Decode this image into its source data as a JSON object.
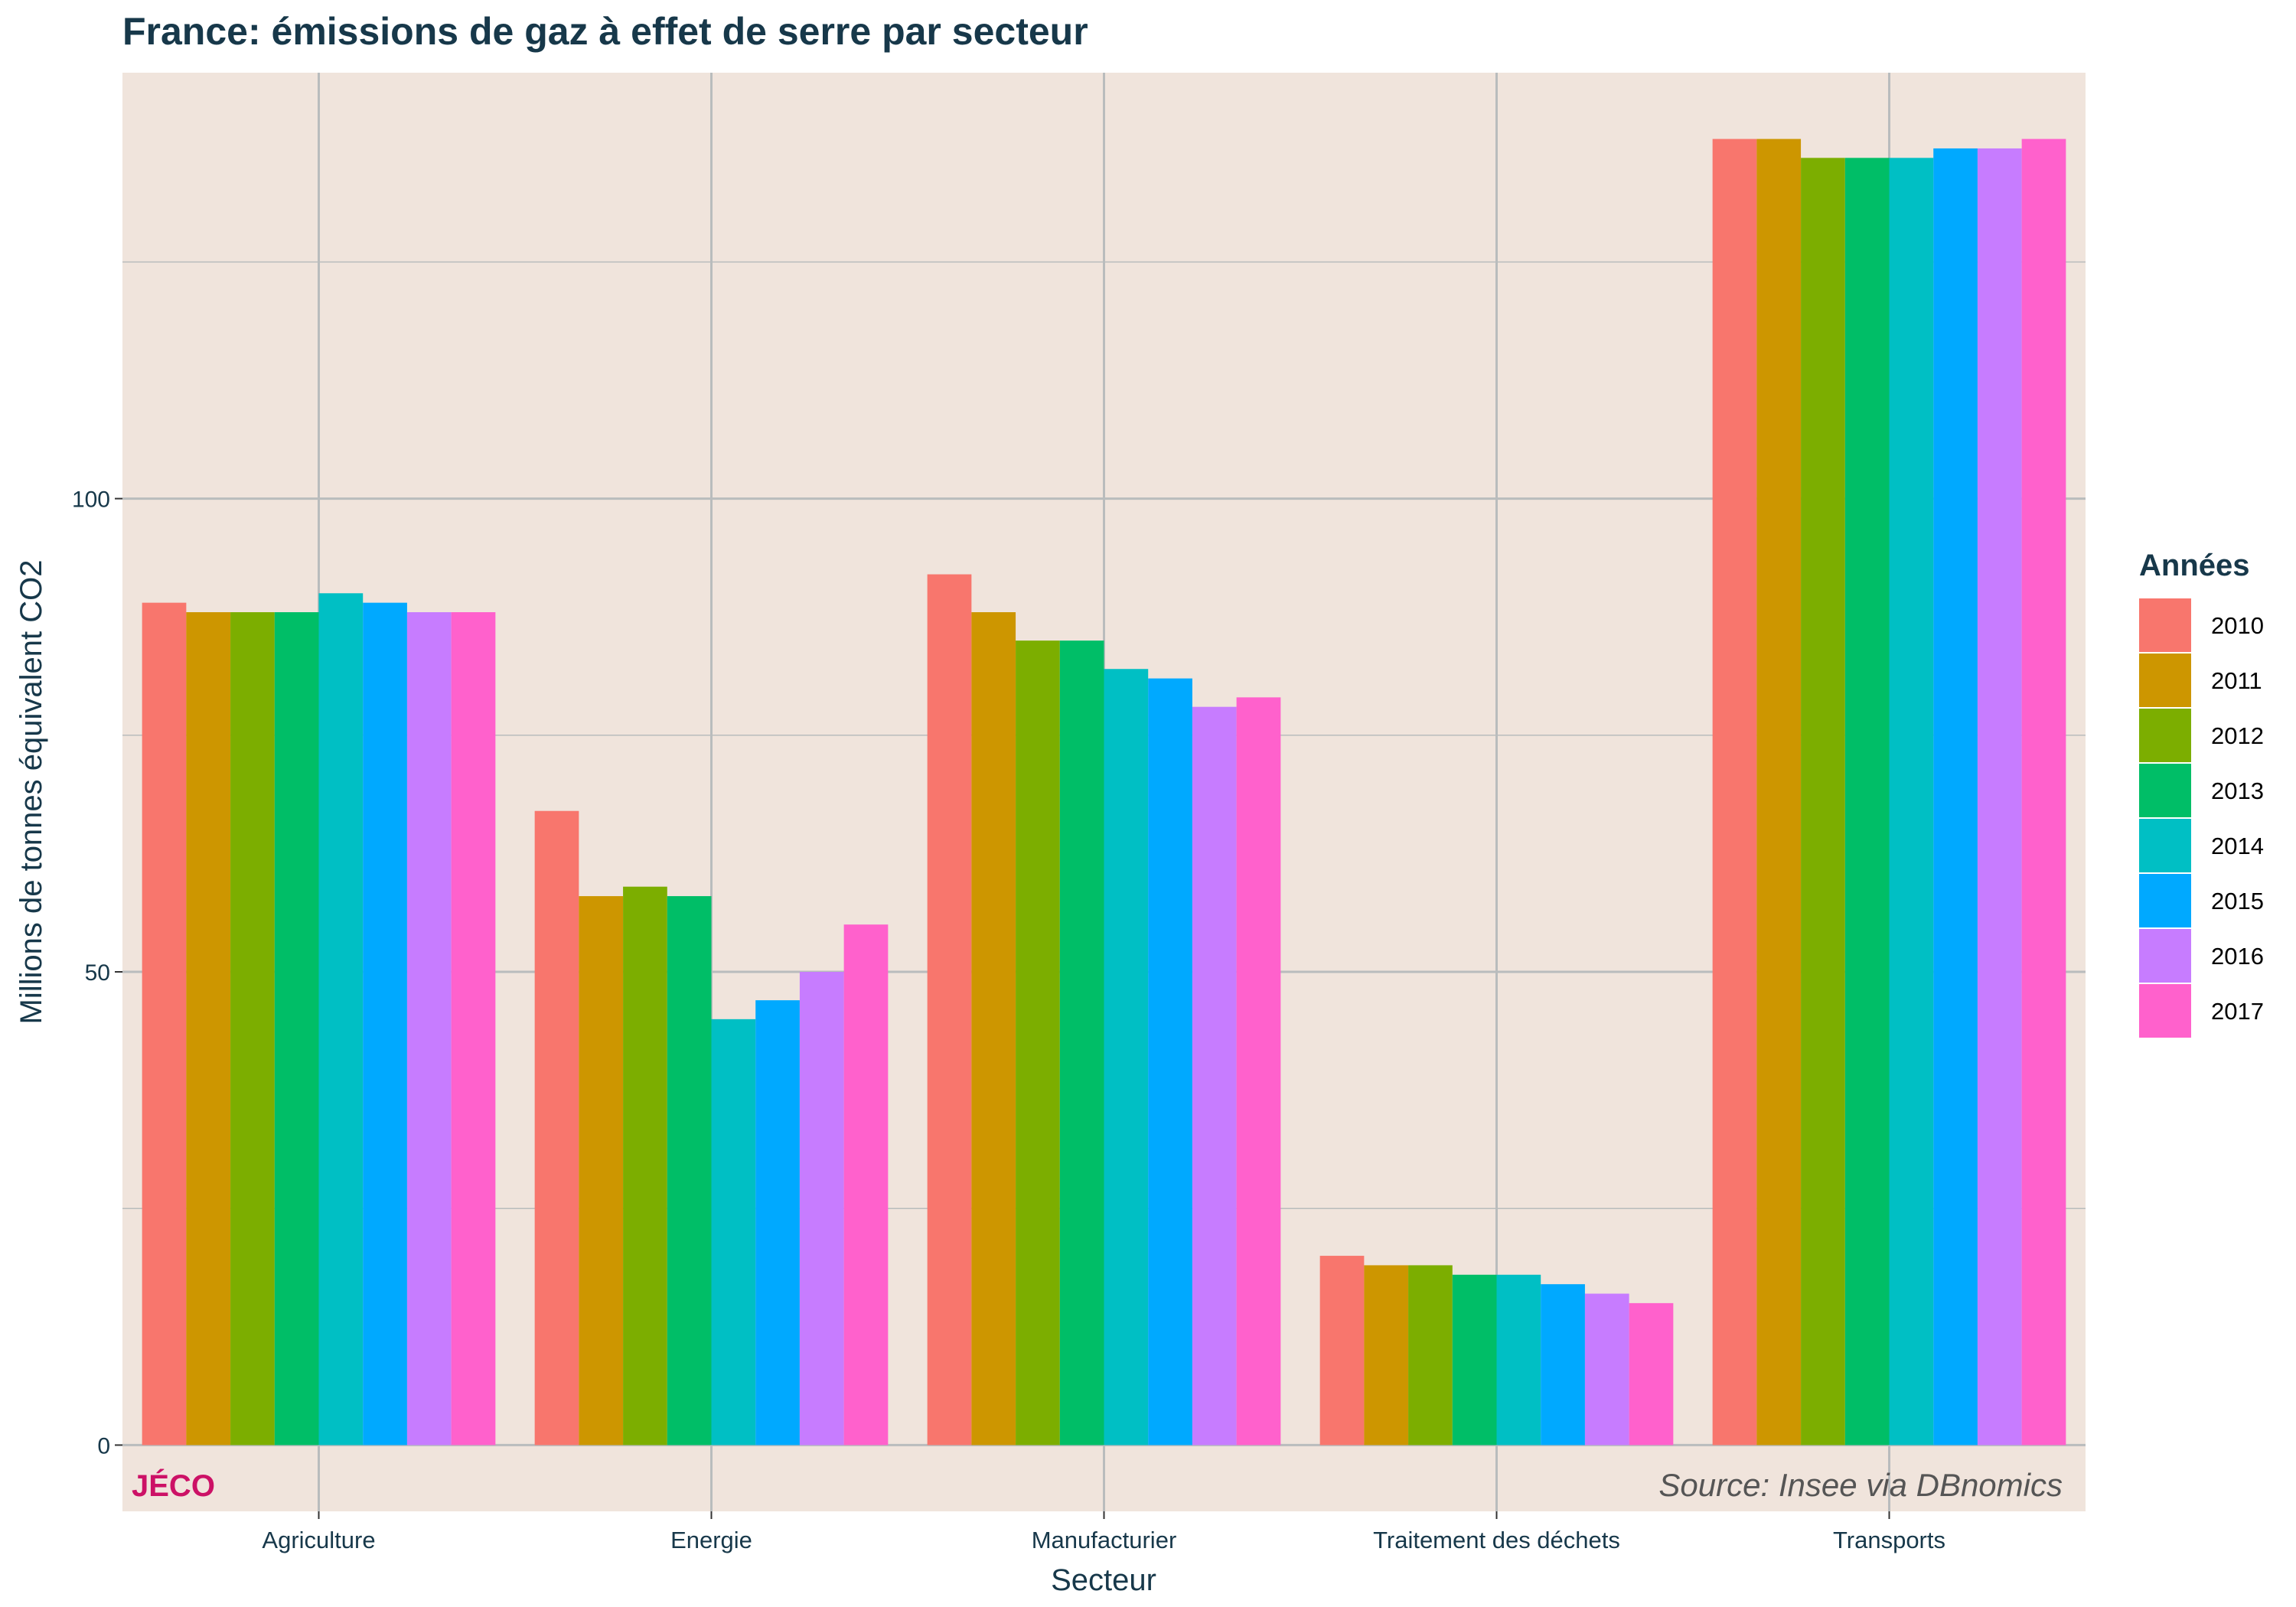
{
  "colors": {
    "title": "#17384a",
    "panel": "#f0e4dc",
    "grid": "#b9bcbd",
    "axis_text": "#17384a",
    "watermark": "#cc1166",
    "source": "#555555"
  },
  "chart_data": {
    "type": "bar",
    "title": "France: émissions de gaz à effet de serre par secteur",
    "xlabel": "Secteur",
    "ylabel": "Millions de tonnes équivalent CO2",
    "ylim": [
      -7,
      145
    ],
    "y_ticks": [
      0,
      50,
      100
    ],
    "grid": true,
    "legend_position": "right",
    "legend_title": "Années",
    "categories": [
      "Agriculture",
      "Energie",
      "Manufacturier",
      "Traitement des déchets",
      "Transports"
    ],
    "series": [
      {
        "name": "2010",
        "color": "#f8766d",
        "values": [
          89,
          67,
          92,
          20,
          138
        ]
      },
      {
        "name": "2011",
        "color": "#cd9600",
        "values": [
          88,
          58,
          88,
          19,
          138
        ]
      },
      {
        "name": "2012",
        "color": "#7cae00",
        "values": [
          88,
          59,
          85,
          19,
          136
        ]
      },
      {
        "name": "2013",
        "color": "#00be67",
        "values": [
          88,
          58,
          85,
          18,
          136
        ]
      },
      {
        "name": "2014",
        "color": "#00bfc4",
        "values": [
          90,
          45,
          82,
          18,
          136
        ]
      },
      {
        "name": "2015",
        "color": "#00a9ff",
        "values": [
          89,
          47,
          81,
          17,
          137
        ]
      },
      {
        "name": "2016",
        "color": "#c77cff",
        "values": [
          88,
          50,
          78,
          16,
          137
        ]
      },
      {
        "name": "2017",
        "color": "#ff61cc",
        "values": [
          88,
          55,
          79,
          15,
          138
        ]
      }
    ],
    "annotations": {
      "watermark": "JÉCO",
      "source": "Source: Insee via DBnomics"
    }
  }
}
